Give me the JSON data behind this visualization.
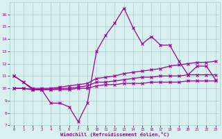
{
  "tick_labels_x": [
    "0",
    "1",
    "2",
    "3",
    "4",
    "5",
    "6",
    "7",
    "8",
    "10",
    "11",
    "12",
    "13",
    "14",
    "15",
    "16",
    "17",
    "18",
    "19",
    "20",
    "21",
    "22",
    "23"
  ],
  "y_main": [
    11.0,
    10.5,
    9.9,
    9.9,
    8.8,
    8.8,
    8.5,
    7.3,
    8.8,
    13.0,
    14.3,
    15.3,
    16.5,
    14.9,
    13.6,
    14.2,
    13.5,
    13.5,
    12.2,
    11.1,
    11.8,
    11.8,
    10.7
  ],
  "y_upper": [
    11.0,
    10.5,
    10.0,
    10.0,
    10.0,
    10.1,
    10.2,
    10.3,
    10.4,
    10.8,
    10.9,
    11.0,
    11.2,
    11.3,
    11.4,
    11.5,
    11.6,
    11.8,
    11.9,
    12.0,
    12.1,
    12.1,
    12.2
  ],
  "y_mid": [
    10.0,
    10.0,
    9.9,
    9.9,
    9.9,
    10.0,
    10.0,
    10.1,
    10.2,
    10.5,
    10.5,
    10.6,
    10.7,
    10.8,
    10.9,
    10.9,
    11.0,
    11.0,
    11.0,
    11.1,
    11.1,
    11.1,
    11.1
  ],
  "y_lower": [
    10.0,
    10.0,
    9.9,
    9.9,
    9.9,
    9.9,
    9.9,
    10.0,
    10.0,
    10.2,
    10.3,
    10.3,
    10.4,
    10.4,
    10.4,
    10.5,
    10.5,
    10.5,
    10.5,
    10.6,
    10.6,
    10.6,
    10.6
  ],
  "line_color": "#990099",
  "bg_color": "#d8f0f0",
  "grid_color": "#aacccc",
  "xlabel": "Windchill (Refroidissement éolien,°C)",
  "xlabel_color": "#990099",
  "tick_color": "#990099",
  "ylim": [
    7,
    17
  ],
  "yticks": [
    7,
    8,
    9,
    10,
    11,
    12,
    13,
    14,
    15,
    16
  ]
}
